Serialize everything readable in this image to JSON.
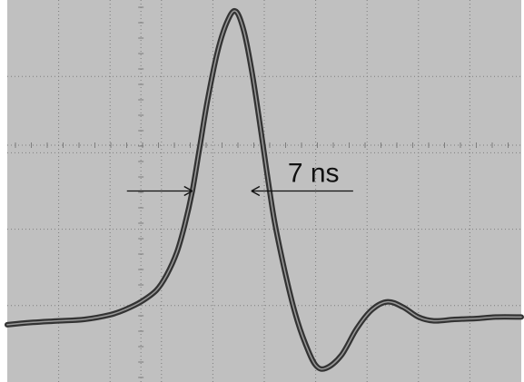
{
  "chart_data": {
    "type": "line",
    "title": "",
    "xlabel": "",
    "ylabel": "",
    "grid": true,
    "xlim": [
      0,
      10
    ],
    "ylim": [
      -4,
      1
    ],
    "series": [
      {
        "x": [
          0,
          0.5,
          1,
          1.5,
          2,
          2.3,
          2.6,
          2.9,
          3.1,
          3.3,
          3.45,
          3.6,
          3.75,
          3.9,
          4.1,
          4.3,
          4.45,
          4.6,
          4.75,
          4.9,
          5.05,
          5.2,
          5.4,
          5.6,
          5.8,
          6.0,
          6.2,
          6.5,
          6.8,
          7.1,
          7.4,
          7.7,
          8.0,
          8.3,
          8.7,
          9.1,
          9.5,
          10
        ],
        "y": [
          -3.25,
          -3.22,
          -3.2,
          -3.18,
          -3.12,
          -3.05,
          -2.95,
          -2.8,
          -2.6,
          -2.3,
          -1.95,
          -1.5,
          -0.9,
          -0.3,
          0.35,
          0.75,
          0.85,
          0.6,
          0.1,
          -0.55,
          -1.25,
          -1.9,
          -2.55,
          -3.1,
          -3.5,
          -3.78,
          -3.82,
          -3.65,
          -3.3,
          -3.05,
          -2.95,
          -3.02,
          -3.15,
          -3.2,
          -3.18,
          -3.17,
          -3.15,
          -3.15
        ]
      }
    ],
    "annotations": [
      {
        "text": "7 ns",
        "type": "width-marker",
        "x_from": 3.6,
        "x_to": 4.75,
        "y": -1.5
      }
    ]
  },
  "colors": {
    "background": "#c0c0c0",
    "grid": "#7d7d7d",
    "trace": "#333333",
    "trace_highlight": "#9a9a9a",
    "annotation": "#111111"
  }
}
